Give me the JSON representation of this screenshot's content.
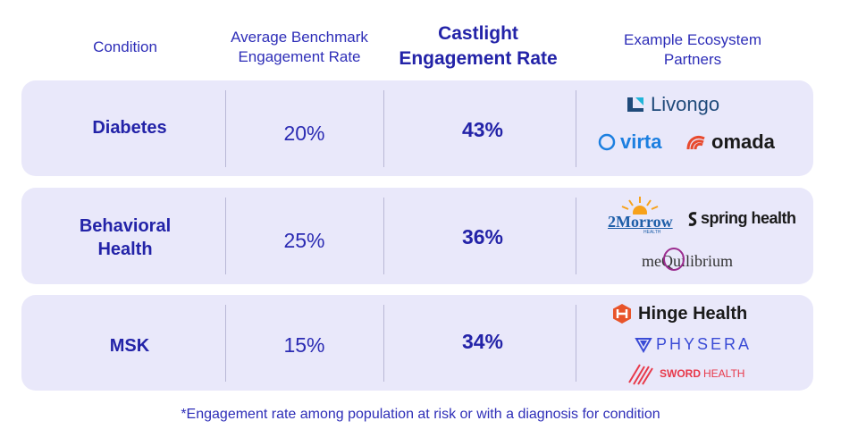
{
  "header": {
    "condition": "Condition",
    "benchmark_line1": "Average Benchmark",
    "benchmark_line2": "Engagement Rate",
    "castlight_line1": "Castlight",
    "castlight_line2": "Engagement Rate",
    "partners_line1": "Example Ecosystem",
    "partners_line2": "Partners"
  },
  "rows": [
    {
      "condition_line1": "Diabetes",
      "condition_line2": "",
      "benchmark": "20%",
      "castlight": "43%",
      "partners": [
        "Livongo",
        "virta",
        "omada"
      ]
    },
    {
      "condition_line1": "Behavioral",
      "condition_line2": "Health",
      "benchmark": "25%",
      "castlight": "36%",
      "partners": [
        "2Morrow",
        "HEALTH",
        "spring health",
        "meQuilibrium"
      ]
    },
    {
      "condition_line1": "MSK",
      "condition_line2": "",
      "benchmark": "15%",
      "castlight": "34%",
      "partners": [
        "Hinge Health",
        "PHYSERA",
        "SWORD",
        "HEALTH"
      ]
    }
  ],
  "footnote": "*Engagement rate among population at risk or with a diagnosis for condition",
  "colors": {
    "row_bg": "#e9e8fa",
    "text": "#2323a8",
    "livongo": "#1f4a7a",
    "virta": "#1c7fe0",
    "omada": "#e84a2e",
    "hinge": "#e8542a",
    "physera": "#3a4bd6",
    "sword": "#e8394a"
  }
}
